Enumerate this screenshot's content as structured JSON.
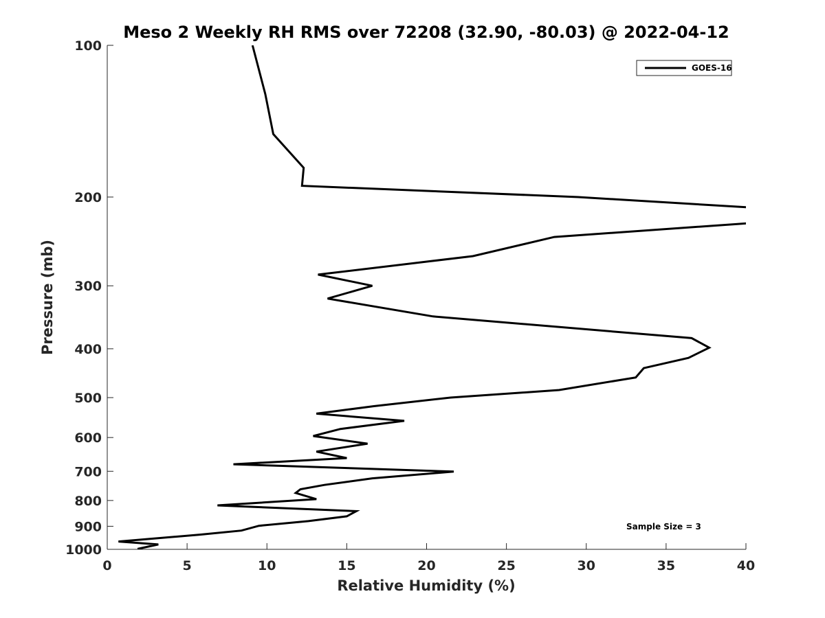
{
  "chart_data": {
    "type": "line",
    "title": "Meso 2 Weekly RH RMS over 72208 (32.90, -80.03) @ 2022-04-12",
    "xlabel": "Relative Humidity (%)",
    "ylabel": "Pressure (mb)",
    "xlim": [
      0,
      40
    ],
    "ylim": [
      100,
      1000
    ],
    "y_scale": "log",
    "y_reversed": true,
    "x_ticks": [
      "0",
      "5",
      "10",
      "15",
      "20",
      "25",
      "30",
      "35",
      "40"
    ],
    "y_ticks": [
      "100",
      "200",
      "300",
      "400",
      "500",
      "600",
      "700",
      "800",
      "900",
      "1000"
    ],
    "grid": false,
    "legend_position": "top-right",
    "annotation": "Sample Size = 3",
    "series": [
      {
        "name": "GOES-16",
        "color": "#000000",
        "points": [
          [
            9.1,
            100
          ],
          [
            9.9,
            125
          ],
          [
            10.4,
            150
          ],
          [
            12.3,
            175
          ],
          [
            12.2,
            190
          ],
          [
            29.5,
            200
          ],
          [
            40.5,
            210
          ],
          [
            40.5,
            225
          ],
          [
            28.0,
            240
          ],
          [
            22.9,
            262
          ],
          [
            13.2,
            285
          ],
          [
            16.6,
            300
          ],
          [
            13.8,
            318
          ],
          [
            20.4,
            345
          ],
          [
            36.6,
            381
          ],
          [
            37.7,
            398
          ],
          [
            36.4,
            417
          ],
          [
            33.6,
            437
          ],
          [
            33.1,
            456
          ],
          [
            28.3,
            483
          ],
          [
            21.5,
            500
          ],
          [
            16.7,
            520
          ],
          [
            13.1,
            538
          ],
          [
            18.6,
            556
          ],
          [
            14.6,
            577
          ],
          [
            12.9,
            596
          ],
          [
            16.3,
            617
          ],
          [
            13.1,
            640
          ],
          [
            15.0,
            659
          ],
          [
            7.9,
            678
          ],
          [
            21.7,
            701
          ],
          [
            16.6,
            723
          ],
          [
            13.6,
            745
          ],
          [
            12.1,
            760
          ],
          [
            11.8,
            773
          ],
          [
            13.1,
            795
          ],
          [
            6.9,
            818
          ],
          [
            15.6,
            840
          ],
          [
            15.0,
            860
          ],
          [
            12.6,
            879
          ],
          [
            9.5,
            898
          ],
          [
            8.4,
            918
          ],
          [
            5.8,
            935
          ],
          [
            0.7,
            965
          ],
          [
            3.2,
            978
          ],
          [
            1.9,
            998
          ]
        ]
      }
    ]
  }
}
